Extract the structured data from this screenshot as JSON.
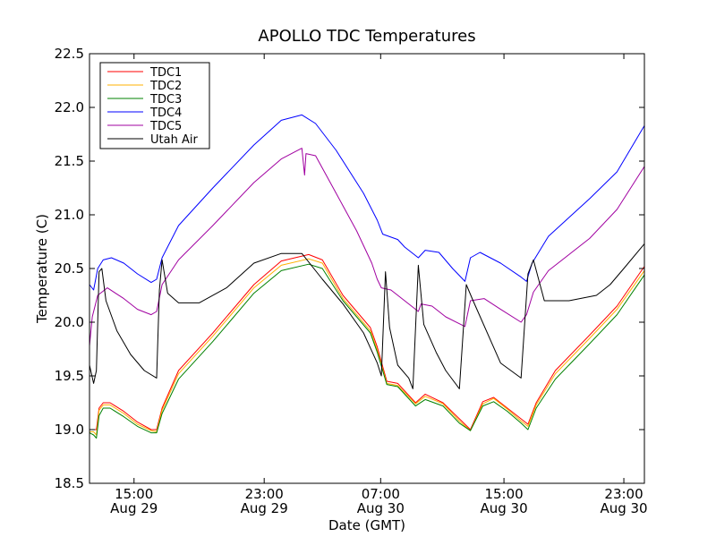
{
  "chart_data": {
    "type": "line",
    "title": "APOLLO TDC Temperatures",
    "xlabel": "Date (GMT)",
    "ylabel": "Temperature (C)",
    "x_unit": "hours since Aug 29 08:00 GMT",
    "xlim": [
      0,
      40.5
    ],
    "ylim": [
      18.5,
      22.5
    ],
    "yticks": [
      "18.5",
      "19.0",
      "19.5",
      "20.0",
      "20.5",
      "21.0",
      "21.5",
      "22.0",
      "22.5"
    ],
    "xticks": [
      {
        "x": 3.25,
        "time": "15:00",
        "date": "Aug 29"
      },
      {
        "x": 12.75,
        "time": "23:00",
        "date": "Aug 29"
      },
      {
        "x": 21.25,
        "time": "07:00",
        "date": "Aug 30"
      },
      {
        "x": 30.25,
        "time": "15:00",
        "date": "Aug 30"
      },
      {
        "x": 39.0,
        "time": "23:00",
        "date": "Aug 30"
      }
    ],
    "legend_position": "top-left",
    "series": [
      {
        "name": "TDC1",
        "color": "#ff0000",
        "points": [
          [
            0,
            19.0
          ],
          [
            0.3,
            19.0
          ],
          [
            0.5,
            19.0
          ],
          [
            0.7,
            19.2
          ],
          [
            1.0,
            19.25
          ],
          [
            1.5,
            19.25
          ],
          [
            2.5,
            19.17
          ],
          [
            3.5,
            19.07
          ],
          [
            4.5,
            19.0
          ],
          [
            4.9,
            19.0
          ],
          [
            5.3,
            19.2
          ],
          [
            6.5,
            19.55
          ],
          [
            9.0,
            19.9
          ],
          [
            12.0,
            20.35
          ],
          [
            14.0,
            20.57
          ],
          [
            16.0,
            20.63
          ],
          [
            17.0,
            20.58
          ],
          [
            18.5,
            20.25
          ],
          [
            20.5,
            19.95
          ],
          [
            21.0,
            19.77
          ],
          [
            21.7,
            19.45
          ],
          [
            22.5,
            19.43
          ],
          [
            23.8,
            19.25
          ],
          [
            24.5,
            19.33
          ],
          [
            25.8,
            19.25
          ],
          [
            27.0,
            19.1
          ],
          [
            27.8,
            19.0
          ],
          [
            28.7,
            19.26
          ],
          [
            29.5,
            19.3
          ],
          [
            30.5,
            19.2
          ],
          [
            31.5,
            19.1
          ],
          [
            32.0,
            19.05
          ],
          [
            32.6,
            19.25
          ],
          [
            34.0,
            19.55
          ],
          [
            36.5,
            19.88
          ],
          [
            38.5,
            20.15
          ],
          [
            40.5,
            20.52
          ]
        ]
      },
      {
        "name": "TDC2",
        "color": "#ffb000",
        "points": [
          [
            0,
            18.98
          ],
          [
            0.3,
            18.98
          ],
          [
            0.5,
            18.95
          ],
          [
            0.7,
            19.18
          ],
          [
            1.0,
            19.23
          ],
          [
            1.5,
            19.23
          ],
          [
            2.5,
            19.15
          ],
          [
            3.5,
            19.05
          ],
          [
            4.5,
            18.99
          ],
          [
            4.9,
            18.98
          ],
          [
            5.3,
            19.18
          ],
          [
            6.5,
            19.52
          ],
          [
            9.0,
            19.87
          ],
          [
            12.0,
            20.32
          ],
          [
            14.0,
            20.53
          ],
          [
            16.0,
            20.59
          ],
          [
            17.0,
            20.55
          ],
          [
            18.5,
            20.22
          ],
          [
            20.5,
            19.92
          ],
          [
            21.0,
            19.74
          ],
          [
            21.7,
            19.43
          ],
          [
            22.5,
            19.41
          ],
          [
            23.8,
            19.24
          ],
          [
            24.5,
            19.31
          ],
          [
            25.8,
            19.24
          ],
          [
            27.0,
            19.08
          ],
          [
            27.8,
            18.99
          ],
          [
            28.7,
            19.24
          ],
          [
            29.5,
            19.29
          ],
          [
            30.5,
            19.19
          ],
          [
            31.5,
            19.08
          ],
          [
            32.0,
            19.03
          ],
          [
            32.6,
            19.23
          ],
          [
            34.0,
            19.52
          ],
          [
            36.5,
            19.85
          ],
          [
            38.5,
            20.12
          ],
          [
            40.5,
            20.48
          ]
        ]
      },
      {
        "name": "TDC3",
        "color": "#008000",
        "points": [
          [
            0,
            18.97
          ],
          [
            0.3,
            18.95
          ],
          [
            0.5,
            18.92
          ],
          [
            0.7,
            19.13
          ],
          [
            1.0,
            19.2
          ],
          [
            1.5,
            19.2
          ],
          [
            2.5,
            19.12
          ],
          [
            3.5,
            19.03
          ],
          [
            4.5,
            18.97
          ],
          [
            4.9,
            18.97
          ],
          [
            5.3,
            19.15
          ],
          [
            6.5,
            19.47
          ],
          [
            9.0,
            19.82
          ],
          [
            12.0,
            20.27
          ],
          [
            14.0,
            20.48
          ],
          [
            16.0,
            20.54
          ],
          [
            17.0,
            20.5
          ],
          [
            18.5,
            20.2
          ],
          [
            20.5,
            19.9
          ],
          [
            21.0,
            19.72
          ],
          [
            21.7,
            19.42
          ],
          [
            22.5,
            19.4
          ],
          [
            23.8,
            19.22
          ],
          [
            24.5,
            19.28
          ],
          [
            25.8,
            19.22
          ],
          [
            27.0,
            19.06
          ],
          [
            27.8,
            18.99
          ],
          [
            28.7,
            19.22
          ],
          [
            29.5,
            19.26
          ],
          [
            30.5,
            19.17
          ],
          [
            31.5,
            19.06
          ],
          [
            32.0,
            19.0
          ],
          [
            32.6,
            19.2
          ],
          [
            34.0,
            19.47
          ],
          [
            36.5,
            19.8
          ],
          [
            38.5,
            20.07
          ],
          [
            40.5,
            20.44
          ]
        ]
      },
      {
        "name": "TDC4",
        "color": "#0000ff",
        "points": [
          [
            0,
            20.35
          ],
          [
            0.3,
            20.3
          ],
          [
            0.6,
            20.5
          ],
          [
            1.0,
            20.58
          ],
          [
            1.6,
            20.6
          ],
          [
            2.5,
            20.55
          ],
          [
            3.5,
            20.45
          ],
          [
            4.5,
            20.37
          ],
          [
            4.9,
            20.4
          ],
          [
            5.3,
            20.6
          ],
          [
            6.5,
            20.9
          ],
          [
            9.0,
            21.25
          ],
          [
            12.0,
            21.65
          ],
          [
            14.0,
            21.88
          ],
          [
            15.5,
            21.93
          ],
          [
            16.5,
            21.85
          ],
          [
            18.0,
            21.6
          ],
          [
            20.0,
            21.2
          ],
          [
            21.0,
            20.95
          ],
          [
            21.4,
            20.82
          ],
          [
            22.5,
            20.77
          ],
          [
            23.0,
            20.7
          ],
          [
            24.0,
            20.6
          ],
          [
            24.5,
            20.67
          ],
          [
            25.5,
            20.65
          ],
          [
            26.5,
            20.5
          ],
          [
            27.4,
            20.38
          ],
          [
            27.8,
            20.6
          ],
          [
            28.5,
            20.65
          ],
          [
            30.0,
            20.55
          ],
          [
            31.5,
            20.42
          ],
          [
            31.9,
            20.38
          ],
          [
            32.3,
            20.55
          ],
          [
            33.5,
            20.8
          ],
          [
            36.5,
            21.15
          ],
          [
            38.5,
            21.4
          ],
          [
            40.5,
            21.83
          ]
        ]
      },
      {
        "name": "TDC5",
        "color": "#a000a0",
        "points": [
          [
            0,
            19.78
          ],
          [
            0.2,
            20.05
          ],
          [
            0.6,
            20.25
          ],
          [
            1.3,
            20.32
          ],
          [
            2.5,
            20.22
          ],
          [
            3.5,
            20.12
          ],
          [
            4.5,
            20.07
          ],
          [
            4.9,
            20.1
          ],
          [
            5.3,
            20.35
          ],
          [
            6.5,
            20.58
          ],
          [
            9.0,
            20.9
          ],
          [
            12.0,
            21.3
          ],
          [
            14.0,
            21.52
          ],
          [
            15.5,
            21.62
          ],
          [
            15.7,
            21.37
          ],
          [
            15.8,
            21.57
          ],
          [
            16.5,
            21.55
          ],
          [
            18.0,
            21.2
          ],
          [
            19.5,
            20.85
          ],
          [
            20.6,
            20.55
          ],
          [
            21.0,
            20.4
          ],
          [
            21.3,
            20.32
          ],
          [
            22.0,
            20.3
          ],
          [
            23.0,
            20.2
          ],
          [
            24.0,
            20.1
          ],
          [
            24.2,
            20.17
          ],
          [
            25.0,
            20.15
          ],
          [
            26.0,
            20.05
          ],
          [
            27.4,
            19.96
          ],
          [
            27.8,
            20.2
          ],
          [
            28.8,
            20.22
          ],
          [
            30.0,
            20.12
          ],
          [
            31.5,
            20.0
          ],
          [
            31.9,
            20.07
          ],
          [
            32.4,
            20.28
          ],
          [
            33.5,
            20.48
          ],
          [
            36.5,
            20.78
          ],
          [
            38.5,
            21.05
          ],
          [
            40.5,
            21.45
          ]
        ]
      },
      {
        "name": "Utah Air",
        "color": "#000000",
        "points": [
          [
            0,
            19.6
          ],
          [
            0.3,
            19.43
          ],
          [
            0.5,
            19.55
          ],
          [
            0.7,
            20.47
          ],
          [
            0.9,
            20.5
          ],
          [
            1.2,
            20.2
          ],
          [
            2.0,
            19.92
          ],
          [
            3.0,
            19.7
          ],
          [
            4.0,
            19.55
          ],
          [
            4.9,
            19.48
          ],
          [
            5.1,
            20.3
          ],
          [
            5.3,
            20.58
          ],
          [
            5.7,
            20.27
          ],
          [
            6.5,
            20.18
          ],
          [
            8.0,
            20.18
          ],
          [
            10.0,
            20.32
          ],
          [
            12.0,
            20.55
          ],
          [
            14.0,
            20.64
          ],
          [
            15.5,
            20.64
          ],
          [
            17.0,
            20.4
          ],
          [
            18.5,
            20.17
          ],
          [
            20.0,
            19.9
          ],
          [
            21.0,
            19.62
          ],
          [
            21.3,
            19.5
          ],
          [
            21.6,
            20.47
          ],
          [
            21.9,
            19.95
          ],
          [
            22.5,
            19.6
          ],
          [
            23.3,
            19.48
          ],
          [
            23.6,
            19.38
          ],
          [
            24.0,
            20.53
          ],
          [
            24.4,
            19.98
          ],
          [
            25.3,
            19.72
          ],
          [
            26.0,
            19.55
          ],
          [
            27.0,
            19.38
          ],
          [
            27.5,
            20.35
          ],
          [
            28.0,
            20.2
          ],
          [
            30.0,
            19.62
          ],
          [
            31.5,
            19.48
          ],
          [
            32.0,
            20.45
          ],
          [
            32.4,
            20.58
          ],
          [
            33.2,
            20.2
          ],
          [
            35.0,
            20.2
          ],
          [
            37.0,
            20.25
          ],
          [
            38.0,
            20.35
          ],
          [
            39.0,
            20.5
          ],
          [
            40.5,
            20.73
          ]
        ]
      }
    ]
  }
}
